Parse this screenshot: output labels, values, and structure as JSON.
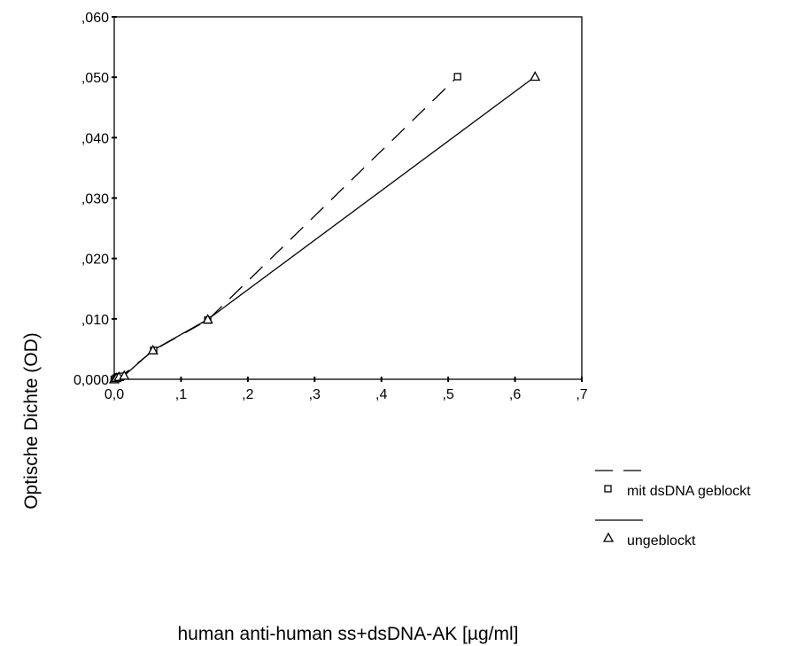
{
  "chart_data": {
    "type": "line",
    "title": "",
    "xlabel": "human anti-human ss+dsDNA-AK [µg/ml]",
    "ylabel": "Optische Dichte (OD)",
    "xlim": [
      0,
      0.7
    ],
    "ylim": [
      0,
      0.06
    ],
    "xticks": [
      0,
      0.1,
      0.2,
      0.3,
      0.4,
      0.5,
      0.6,
      0.7
    ],
    "xtick_labels": [
      "0,0",
      ",1",
      ",2",
      ",3",
      ",4",
      ",5",
      ",6",
      ",7"
    ],
    "yticks": [
      0,
      0.01,
      0.02,
      0.03,
      0.04,
      0.05,
      0.06
    ],
    "ytick_labels": [
      "0,000",
      ",010",
      ",020",
      ",030",
      ",040",
      ",050",
      ",060"
    ],
    "grid": false,
    "legend_position": "right",
    "series": [
      {
        "name": "mit dsDNA geblockt",
        "marker": "square",
        "line_style": "dashed",
        "x": [
          0.0,
          0.0025,
          0.0055,
          0.0105,
          0.059,
          0.14,
          0.514
        ],
        "y": [
          0.0,
          0.0002,
          0.0004,
          0.0005,
          0.0048,
          0.0098,
          0.0501
        ]
      },
      {
        "name": "ungeblockt",
        "marker": "triangle",
        "line_style": "solid",
        "x": [
          0.0,
          0.003,
          0.007,
          0.015,
          0.058,
          0.14,
          0.63
        ],
        "y": [
          0.0,
          0.0002,
          0.0004,
          0.0006,
          0.0048,
          0.0099,
          0.0501
        ]
      }
    ]
  }
}
